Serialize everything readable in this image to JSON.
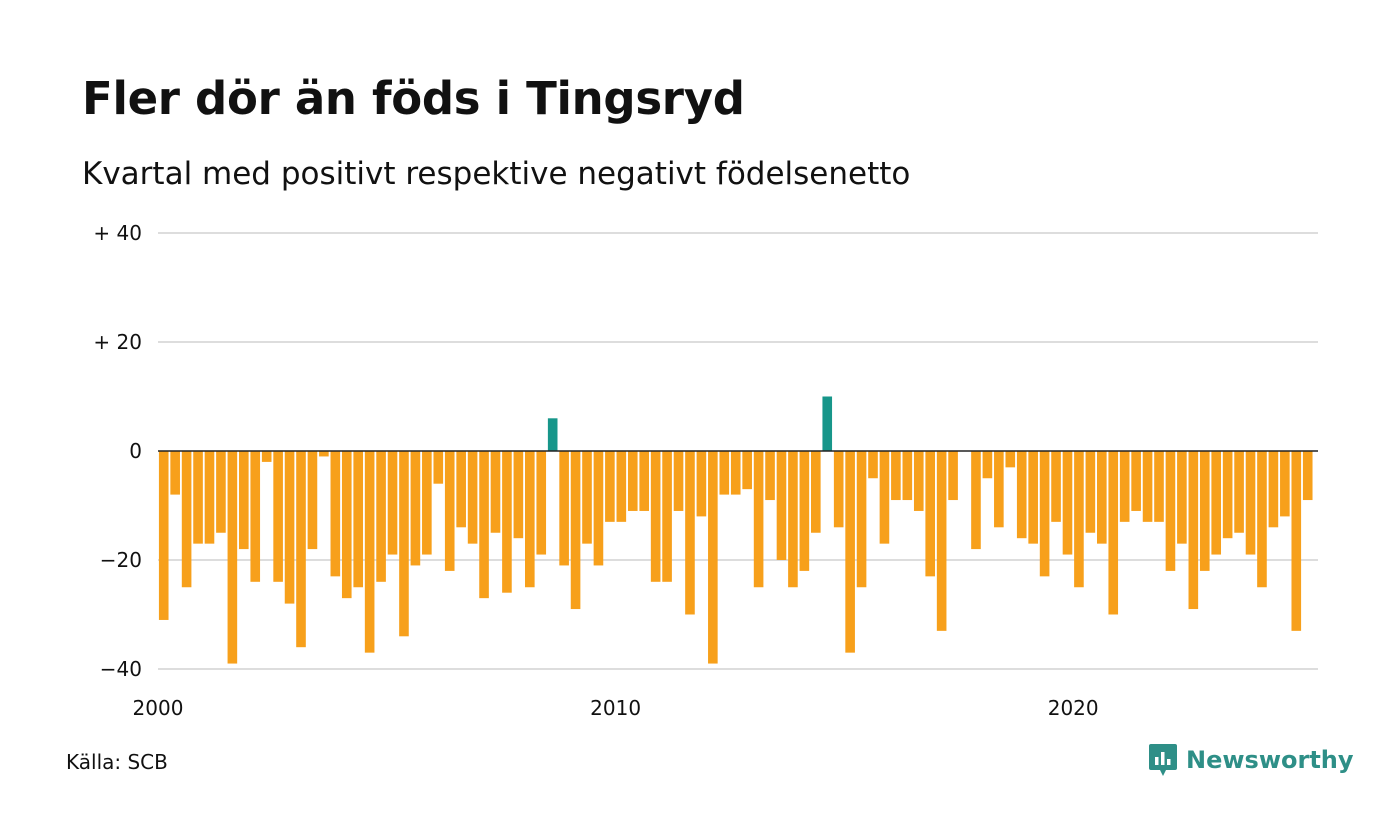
{
  "header": {
    "title": "Fler dör än föds i Tingsryd",
    "subtitle": "Kvartal med positivt respektive negativt födelsenetto"
  },
  "footer": {
    "source": "Källa: SCB",
    "brand": "Newsworthy"
  },
  "colors": {
    "negative": "#f7a01b",
    "positive": "#17968a",
    "grid": "#dddddd",
    "zero_line": "#222222",
    "brand": "#2e8f87"
  },
  "chart_data": {
    "type": "bar",
    "x_start_year": 2000,
    "period": "quarter",
    "ylim": [
      -40,
      40
    ],
    "yticks": [
      {
        "value": 40,
        "label": "+ 40"
      },
      {
        "value": 20,
        "label": "+ 20"
      },
      {
        "value": 0,
        "label": "0"
      },
      {
        "value": -20,
        "label": "−20"
      },
      {
        "value": -40,
        "label": "−40"
      }
    ],
    "xticks": [
      {
        "year": 2000,
        "label": "2000"
      },
      {
        "year": 2010,
        "label": "2010"
      },
      {
        "year": 2020,
        "label": "2020"
      }
    ],
    "values": [
      -31,
      -8,
      -25,
      -17,
      -17,
      -15,
      -39,
      -18,
      -24,
      -2,
      -24,
      -28,
      -36,
      -18,
      -1,
      -23,
      -27,
      -25,
      -37,
      -24,
      -19,
      -34,
      -21,
      -19,
      -6,
      -22,
      -14,
      -17,
      -27,
      -15,
      -26,
      -16,
      -25,
      -19,
      6,
      -21,
      -29,
      -17,
      -21,
      -13,
      -13,
      -11,
      -11,
      -24,
      -24,
      -11,
      -30,
      -12,
      -39,
      -8,
      -8,
      -7,
      -25,
      -9,
      -20,
      -25,
      -22,
      -15,
      10,
      -14,
      -37,
      -25,
      -5,
      -17,
      -9,
      -9,
      -11,
      -23,
      -33,
      -9,
      0,
      -18,
      -5,
      -14,
      -3,
      -16,
      -17,
      -23,
      -13,
      -19,
      -25,
      -15,
      -17,
      -30,
      -13,
      -11,
      -13,
      -13,
      -22,
      -17,
      -29,
      -22,
      -19,
      -16,
      -15,
      -19,
      -25,
      -14,
      -12,
      -33,
      -9
    ]
  }
}
